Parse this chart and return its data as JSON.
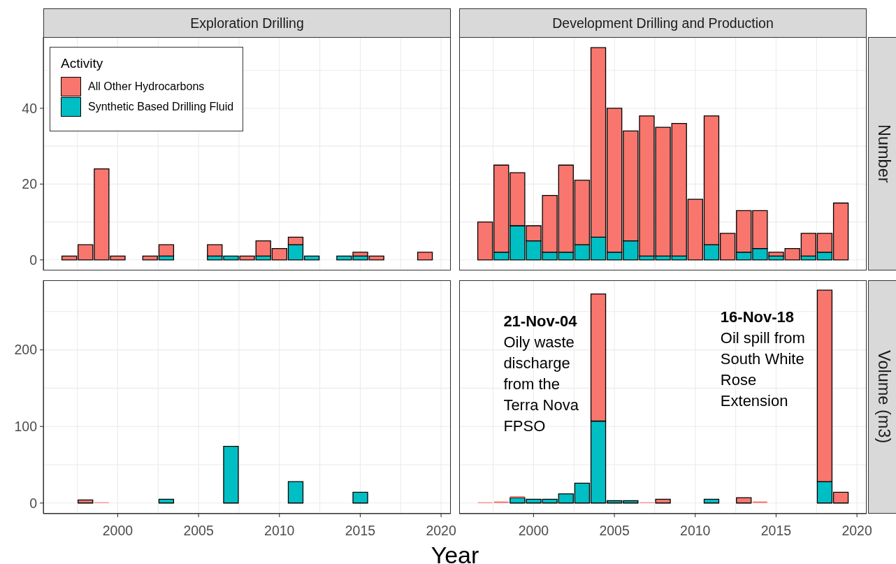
{
  "chart_data": [
    {
      "type": "bar",
      "title": "Exploration Drilling",
      "legend_title": "Activity",
      "legend": "top left",
      "stacked": true,
      "grid": true,
      "tick_labels": "y",
      "x": [
        1997,
        1998,
        1999,
        2000,
        2001,
        2002,
        2003,
        2004,
        2005,
        2006,
        2007,
        2008,
        2009,
        2010,
        2011,
        2012,
        2013,
        2014,
        2015,
        2016,
        2017,
        2018,
        2019
      ],
      "series": [
        {
          "name": "Synthetic Based Drilling Fluid",
          "color": "#00bfc4",
          "values": [
            0,
            0,
            0,
            0,
            0,
            0,
            1,
            0,
            0,
            1,
            1,
            0,
            1,
            0,
            4,
            1,
            0,
            1,
            1,
            0,
            0,
            0,
            0
          ]
        },
        {
          "name": "All Other Hydrocarbons",
          "color": "#f8766d",
          "values": [
            1,
            4,
            24,
            1,
            0,
            1,
            3,
            0,
            0,
            3,
            0,
            1,
            4,
            3,
            2,
            0,
            0,
            0,
            1,
            1,
            0,
            0,
            2
          ]
        }
      ],
      "xlim": [
        1995.4,
        2020.6
      ],
      "ylim": [
        -2.8,
        58.8
      ],
      "xticks": [
        {
          "value": 1997.5,
          "label": null
        },
        2000,
        {
          "value": 2002.5,
          "label": null
        },
        2005,
        {
          "value": 2007.5,
          "label": null
        },
        2010,
        {
          "value": 2012.5,
          "label": null
        },
        2015,
        {
          "value": 2017.5,
          "label": null
        },
        2020
      ],
      "yticks": [
        0,
        {
          "value": 10,
          "label": null
        },
        20,
        {
          "value": 30,
          "label": null
        },
        40,
        {
          "value": 50,
          "label": null
        }
      ]
    },
    {
      "type": "bar",
      "title": "Development Drilling and Production",
      "ylabel": "Number",
      "stacked": true,
      "grid": true,
      "tick_labels": false,
      "x": [
        1997,
        1998,
        1999,
        2000,
        2001,
        2002,
        2003,
        2004,
        2005,
        2006,
        2007,
        2008,
        2009,
        2010,
        2011,
        2012,
        2013,
        2014,
        2015,
        2016,
        2017,
        2018,
        2019
      ],
      "series": [
        {
          "color": "#00bfc4",
          "values": [
            0,
            2,
            9,
            5,
            2,
            2,
            4,
            6,
            2,
            5,
            1,
            1,
            1,
            0,
            4,
            0,
            2,
            3,
            1,
            0,
            1,
            2,
            0
          ]
        },
        {
          "color": "#f8766d",
          "values": [
            10,
            23,
            14,
            4,
            15,
            23,
            17,
            50,
            38,
            29,
            37,
            34,
            35,
            16,
            34,
            7,
            11,
            10,
            1,
            3,
            6,
            5,
            15
          ]
        }
      ],
      "xlim": [
        1995.4,
        2020.6
      ],
      "ylim": [
        -2.8,
        58.8
      ],
      "xticks": [
        {
          "value": 1997.5,
          "label": null
        },
        2000,
        {
          "value": 2002.5,
          "label": null
        },
        2005,
        {
          "value": 2007.5,
          "label": null
        },
        2010,
        {
          "value": 2012.5,
          "label": null
        },
        2015,
        {
          "value": 2017.5,
          "label": null
        },
        2020
      ],
      "yticks": [
        0,
        {
          "value": 10,
          "label": null
        },
        20,
        {
          "value": 30,
          "label": null
        },
        40,
        {
          "value": 50,
          "label": null
        }
      ]
    },
    {
      "type": "bar",
      "xlabel": "Year",
      "stacked": true,
      "grid": true,
      "x": [
        1997,
        1998,
        1999,
        2000,
        2001,
        2002,
        2003,
        2004,
        2005,
        2006,
        2007,
        2008,
        2009,
        2010,
        2011,
        2012,
        2013,
        2014,
        2015,
        2016,
        2017,
        2018,
        2019
      ],
      "series": [
        {
          "color": "#00bfc4",
          "values": [
            0,
            0,
            0,
            0,
            0,
            0,
            5,
            0,
            0,
            0,
            74,
            0,
            0,
            0,
            28,
            0,
            0,
            0,
            14,
            0,
            0,
            0,
            0
          ]
        },
        {
          "color": "#f8766d",
          "values": [
            0,
            4,
            1,
            0,
            0,
            0,
            0,
            0,
            0,
            0,
            0,
            0,
            0,
            0,
            0,
            0,
            0,
            0,
            0,
            0,
            0,
            0,
            0
          ]
        }
      ],
      "xlim": [
        1995.4,
        2020.6
      ],
      "ylim": [
        -13.9,
        290.9
      ],
      "xticks": [
        {
          "value": 1997.5,
          "label": null
        },
        2000,
        {
          "value": 2002.5,
          "label": null
        },
        2005,
        {
          "value": 2007.5,
          "label": null
        },
        2010,
        {
          "value": 2012.5,
          "label": null
        },
        2015,
        {
          "value": 2017.5,
          "label": null
        },
        2020
      ],
      "yticks": [
        0,
        {
          "value": 50,
          "label": null
        },
        100,
        {
          "value": 150,
          "label": null
        },
        200,
        {
          "value": 250,
          "label": null
        }
      ]
    },
    {
      "type": "bar",
      "ylabel": "Volume (m3)",
      "stacked": true,
      "grid": true,
      "tick_labels": "x",
      "x": [
        1997,
        1998,
        1999,
        2000,
        2001,
        2002,
        2003,
        2004,
        2005,
        2006,
        2007,
        2008,
        2009,
        2010,
        2011,
        2012,
        2013,
        2014,
        2015,
        2016,
        2017,
        2018,
        2019
      ],
      "series": [
        {
          "color": "#00bfc4",
          "values": [
            0,
            0,
            7,
            5,
            5,
            12,
            26,
            107,
            3,
            3,
            0,
            0,
            0,
            0,
            5,
            0,
            0,
            0,
            0,
            0,
            0,
            28,
            0
          ]
        },
        {
          "color": "#f8766d",
          "values": [
            1,
            2,
            2,
            0,
            0,
            0,
            0,
            166,
            0,
            0,
            1,
            5,
            0,
            0,
            0,
            0,
            7,
            2,
            0,
            0,
            0,
            250,
            14
          ]
        }
      ],
      "xlim": [
        1995.4,
        2020.6
      ],
      "ylim": [
        -13.9,
        290.9
      ],
      "xticks": [
        {
          "value": 1997.5,
          "label": null
        },
        2000,
        {
          "value": 2002.5,
          "label": null
        },
        2005,
        {
          "value": 2007.5,
          "label": null
        },
        2010,
        {
          "value": 2012.5,
          "label": null
        },
        2015,
        {
          "value": 2017.5,
          "label": null
        },
        2020
      ],
      "yticks": [
        0,
        {
          "value": 50,
          "label": null
        },
        100,
        {
          "value": 150,
          "label": null
        },
        200,
        {
          "value": 250,
          "label": null
        }
      ],
      "annotations": [
        {
          "text": "21-Nov-04\nOily waste\ndischarge\nfrom the\nTerra Nova\nFPSO",
          "x": 2004,
          "y": 273
        },
        {
          "text": "16-Nov-18\nOil spill from\nSouth White\nRose\nExtension",
          "x": 2018,
          "y": 278
        }
      ]
    }
  ]
}
